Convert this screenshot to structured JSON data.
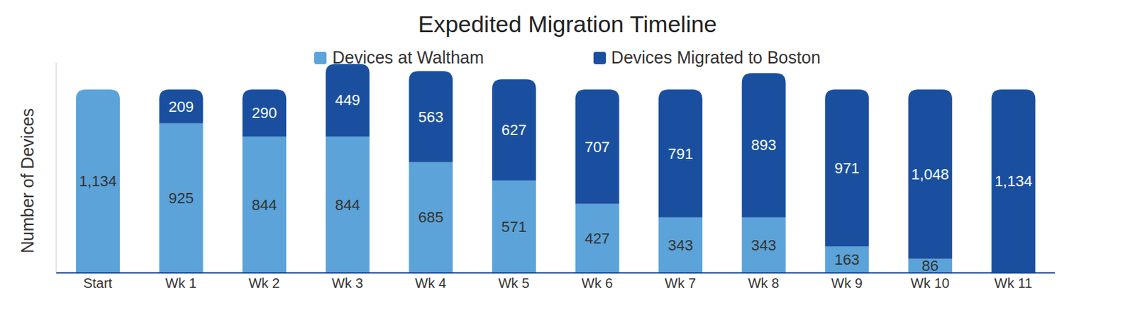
{
  "chart_data": {
    "type": "bar",
    "title": "Expedited Migration Timeline",
    "y_label": "Number of Devices",
    "categories": [
      "Start",
      "Wk 1",
      "Wk 2",
      "Wk 3",
      "Wk 4",
      "Wk 5",
      "Wk 6",
      "Wk 7",
      "Wk 8",
      "Wk 9",
      "Wk 10",
      "Wk 11"
    ],
    "series": [
      {
        "name": "Devices at Waltham",
        "color": "#5ba3d9",
        "values": [
          1134,
          925,
          844,
          844,
          685,
          571,
          427,
          343,
          343,
          163,
          86,
          null
        ],
        "value_labels": [
          "1,134",
          "925",
          "844",
          "844",
          "685",
          "571",
          "427",
          "343",
          "343",
          "163",
          "86",
          null
        ]
      },
      {
        "name": "Devices Migrated to Boston",
        "color": "#1a4f9f",
        "values": [
          null,
          209,
          290,
          449,
          563,
          627,
          707,
          791,
          893,
          971,
          1048,
          1134
        ],
        "value_labels": [
          null,
          "209",
          "290",
          "449",
          "563",
          "627",
          "707",
          "791",
          "893",
          "971",
          "1,048",
          "1,134"
        ]
      }
    ],
    "stacked": true,
    "data_labels": true,
    "legend": "top",
    "tick_labels": "x",
    "grid": false,
    "ylim": [
      0,
      1300
    ]
  }
}
